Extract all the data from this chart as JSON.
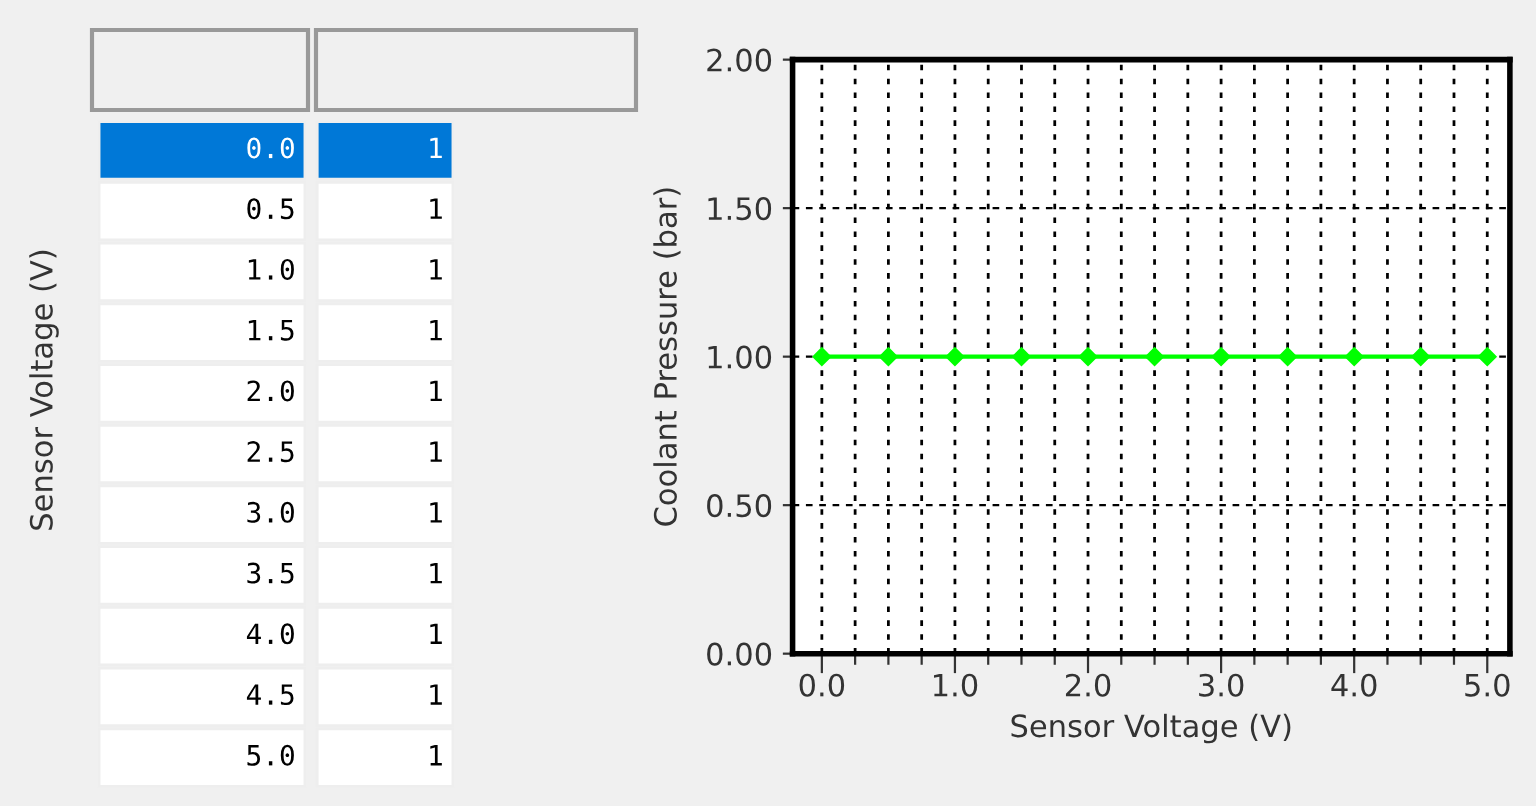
{
  "chart_data": {
    "type": "line",
    "xlabel": "Sensor Voltage (V)",
    "ylabel": "Coolant Pressure (bar)",
    "x": [
      0.0,
      0.5,
      1.0,
      1.5,
      2.0,
      2.5,
      3.0,
      3.5,
      4.0,
      4.5,
      5.0
    ],
    "series": [
      {
        "color": "#00ff00",
        "values": [
          1,
          1,
          1,
          1,
          1,
          1,
          1,
          1,
          1,
          1,
          1
        ]
      }
    ],
    "xlim": [
      -0.22,
      5.17
    ],
    "ylim": [
      0,
      2
    ],
    "xticks": [
      {
        "value": 0,
        "label": "0.0"
      },
      {
        "value": 0.25,
        "label": null
      },
      {
        "value": 0.5,
        "label": null
      },
      {
        "value": 0.75,
        "label": null
      },
      {
        "value": 1,
        "label": "1.0"
      },
      {
        "value": 1.25,
        "label": null
      },
      {
        "value": 1.5,
        "label": null
      },
      {
        "value": 1.75,
        "label": null
      },
      {
        "value": 2,
        "label": "2.0"
      },
      {
        "value": 2.25,
        "label": null
      },
      {
        "value": 2.5,
        "label": null
      },
      {
        "value": 2.75,
        "label": null
      },
      {
        "value": 3,
        "label": "3.0"
      },
      {
        "value": 3.25,
        "label": null
      },
      {
        "value": 3.5,
        "label": null
      },
      {
        "value": 3.75,
        "label": null
      },
      {
        "value": 4,
        "label": "4.0"
      },
      {
        "value": 4.25,
        "label": null
      },
      {
        "value": 4.5,
        "label": null
      },
      {
        "value": 4.75,
        "label": null
      },
      {
        "value": 5,
        "label": "5.0"
      }
    ],
    "yticks": [
      {
        "value": 0,
        "label": "0.00"
      },
      {
        "value": 0.5,
        "label": "0.50"
      },
      {
        "value": 1,
        "label": "1.00"
      },
      {
        "value": 1.5,
        "label": "1.50"
      },
      {
        "value": 2,
        "label": "2.00"
      }
    ],
    "grid": true,
    "marker": "diamond",
    "line_style": "solid",
    "annotations": [
      "0.0",
      "1",
      "0.5",
      "1",
      "1.0",
      "1",
      "1.5",
      "1",
      "2.0",
      "1",
      "2.5",
      "1",
      "3.0",
      "1",
      "3.5",
      "1",
      "4.0",
      "1",
      "4.5",
      "1",
      "5.0",
      "1"
    ]
  }
}
